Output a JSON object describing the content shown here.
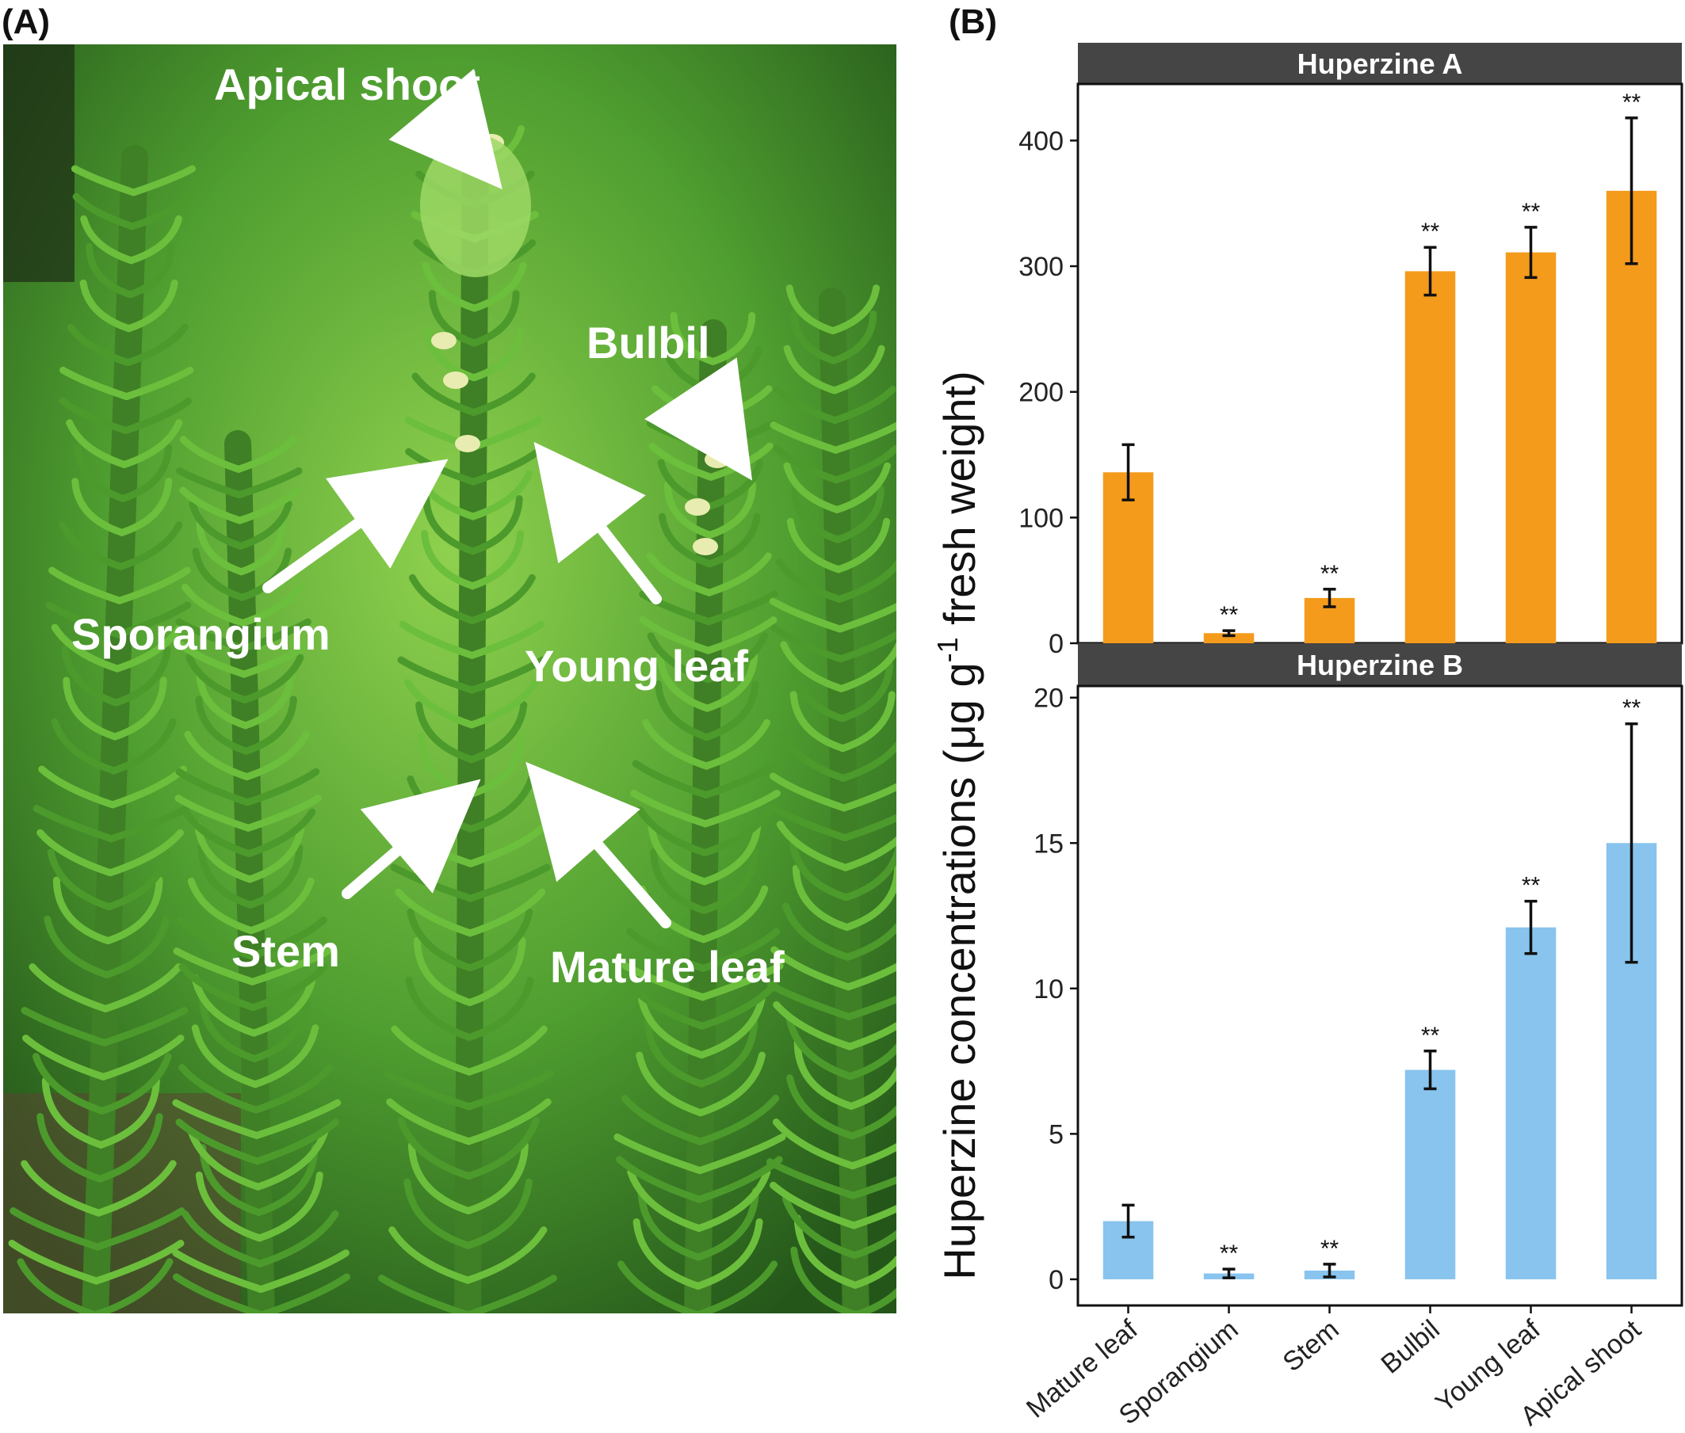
{
  "figure": {
    "panel_a_label": "(A)",
    "panel_b_label": "(B)",
    "photo_labels": {
      "apical_shoot": "Apical shoot",
      "bulbil": "Bulbil",
      "sporangium": "Sporangium",
      "young_leaf": "Young leaf",
      "stem": "Stem",
      "mature_leaf": "Mature leaf"
    },
    "colors": {
      "huperzine_a": "#F49B1C",
      "huperzine_b": "#88C4EE",
      "strip": "#454545",
      "photo_bg": "#3f8a2c"
    }
  },
  "chart_data": [
    {
      "type": "bar",
      "title": "Huperzine A",
      "categories": [
        "Mature leaf",
        "Sporangium",
        "Stem",
        "Bulbil",
        "Young leaf",
        "Apical shoot"
      ],
      "values": [
        136,
        8,
        36,
        296,
        311,
        360
      ],
      "error": [
        22,
        2,
        7,
        19,
        20,
        58
      ],
      "significance": [
        "",
        "**",
        "**",
        "**",
        "**",
        "**"
      ],
      "ylim": [
        0,
        445
      ],
      "yticks": [
        0,
        100,
        200,
        300,
        400
      ],
      "color": "#F49B1C"
    },
    {
      "type": "bar",
      "title": "Huperzine B",
      "categories": [
        "Mature leaf",
        "Sporangium",
        "Stem",
        "Bulbil",
        "Young leaf",
        "Apical shoot"
      ],
      "values": [
        2.0,
        0.2,
        0.3,
        7.2,
        12.1,
        15.0
      ],
      "error": [
        0.55,
        0.15,
        0.22,
        0.65,
        0.9,
        4.1
      ],
      "significance": [
        "",
        "**",
        "**",
        "**",
        "**",
        "**"
      ],
      "ylim": [
        -0.9,
        20.4
      ],
      "yticks": [
        0,
        5,
        10,
        15,
        20
      ],
      "color": "#88C4EE"
    }
  ],
  "ylabel_main": "Huperzine concentrations (μg g",
  "ylabel_sup": "-1",
  "ylabel_tail": " fresh weight)"
}
